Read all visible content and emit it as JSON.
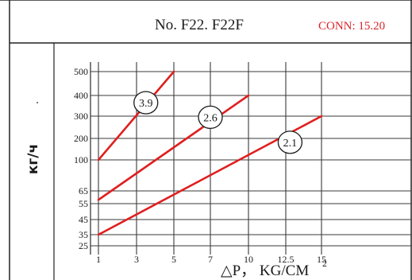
{
  "header": {
    "title": "No. F22. F22F",
    "conn": "CONN: 15.20"
  },
  "colors": {
    "series": "#e01e1e",
    "grid": "#3a3a3a",
    "conn_text": "#d9262b",
    "text": "#1a1a1a"
  },
  "chart_data": {
    "type": "line",
    "title": "No. F22. F22F",
    "xlabel": "△P， KG/CM",
    "xlabel_superscript": "2",
    "ylabel": "кг/ч",
    "x_ticks": [
      "1",
      "3",
      "5",
      "7",
      "10",
      "12.5",
      "15"
    ],
    "y_ticks": [
      "25",
      "35",
      "45",
      "55",
      "65",
      "100",
      "200",
      "300",
      "400",
      "500"
    ],
    "xlim": [
      1,
      15
    ],
    "ylim": [
      25,
      500
    ],
    "grid": true,
    "series": [
      {
        "name": "3.9",
        "points": [
          {
            "x": 1,
            "y": 100
          },
          {
            "x": 5,
            "y": 500
          }
        ],
        "label_at": {
          "x": 3.5,
          "y": 365
        }
      },
      {
        "name": "2.6",
        "points": [
          {
            "x": 1,
            "y": 58
          },
          {
            "x": 10,
            "y": 400
          }
        ],
        "label_at": {
          "x": 7,
          "y": 295
        }
      },
      {
        "name": "2.1",
        "points": [
          {
            "x": 1,
            "y": 35
          },
          {
            "x": 15,
            "y": 300
          }
        ],
        "label_at": {
          "x": 12.8,
          "y": 182
        }
      }
    ]
  }
}
